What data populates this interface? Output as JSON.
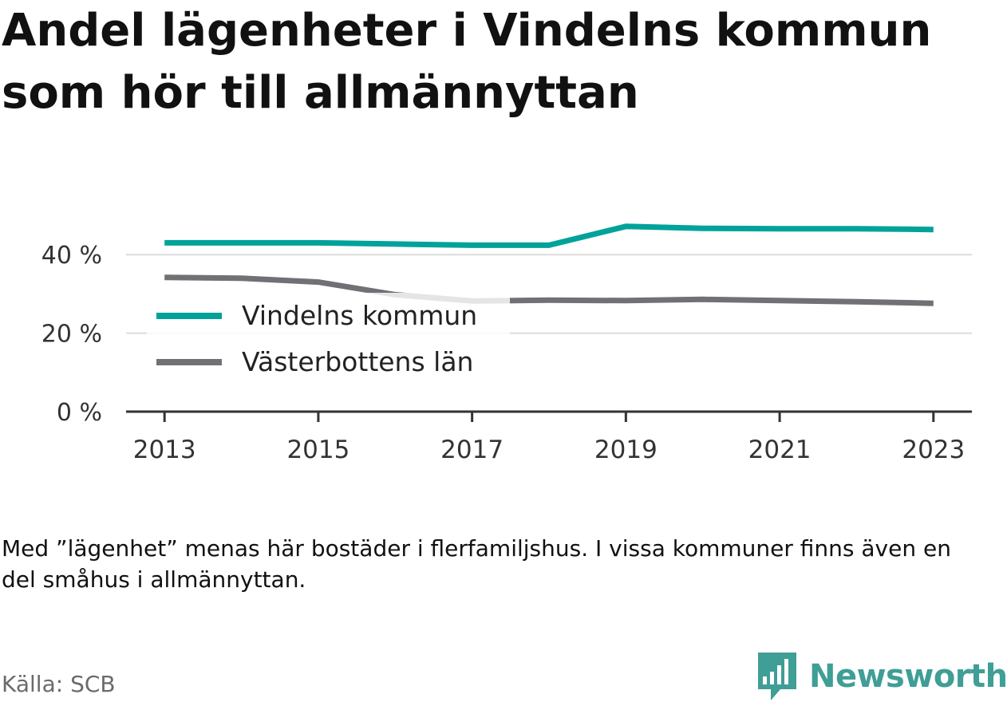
{
  "title": "Andel lägenheter i Vindelns kommun som hör till allmännyttan",
  "note": "Med ”lägenhet” menas här bostäder i flerfamiljshus. I vissa kommuner finns även en del småhus i allmännyttan.",
  "source": "Källa: SCB",
  "brand": {
    "name": "Newsworthy",
    "icon": "newsworthy-logo-icon",
    "color": "#3f9e96"
  },
  "chart_data": {
    "type": "line",
    "x": [
      2013,
      2014,
      2015,
      2016,
      2017,
      2018,
      2019,
      2020,
      2021,
      2022,
      2023
    ],
    "xticks": [
      2013,
      2015,
      2017,
      2019,
      2021,
      2023
    ],
    "xtick_labels": [
      "2013",
      "2015",
      "2017",
      "2019",
      "2021",
      "2023"
    ],
    "yticks": [
      0,
      20,
      40
    ],
    "ytick_labels": [
      "0 %",
      "20 %",
      "40 %"
    ],
    "ylim": [
      0,
      50
    ],
    "xlim": [
      2012.5,
      2023.5
    ],
    "grid": true,
    "legend_position": "center-left",
    "series": [
      {
        "name": "Vindelns kommun",
        "color": "#00a29a",
        "values": [
          43,
          43,
          43,
          42.7,
          42.4,
          42.4,
          47.2,
          46.7,
          46.6,
          46.6,
          46.4
        ]
      },
      {
        "name": "Västerbottens län",
        "color": "#727075",
        "values": [
          34.2,
          34.0,
          33.0,
          29.8,
          28.2,
          28.4,
          28.3,
          28.6,
          28.3,
          28.0,
          27.6
        ]
      }
    ]
  }
}
